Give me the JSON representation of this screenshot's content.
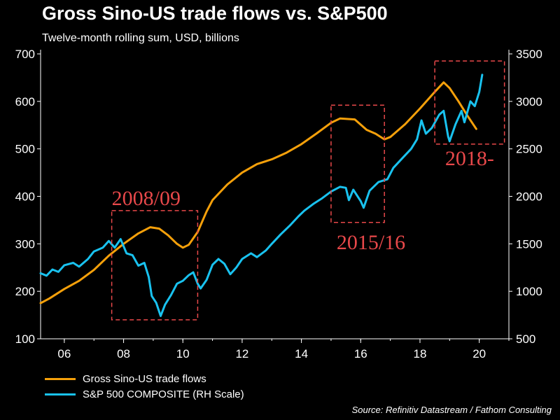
{
  "title": "Gross Sino-US trade flows vs. S&P500",
  "subtitle": "Twelve-month rolling sum, USD, billions",
  "source": "Source: Refinitiv Datastream / Fathom Consulting",
  "colors": {
    "trade": "#f5a00a",
    "sp500": "#19c2ef",
    "annotation": "#e8484a",
    "background": "#000000"
  },
  "chart_data": {
    "type": "line",
    "title": "Gross Sino-US trade flows vs. S&P500",
    "subtitle": "Twelve-month rolling sum, USD, billions",
    "x_ticks": [
      "06",
      "08",
      "10",
      "12",
      "14",
      "16",
      "18",
      "20"
    ],
    "xlim": [
      2005.2,
      2021.0
    ],
    "ylim_left": [
      100,
      700
    ],
    "ylim_right": [
      500,
      3500
    ],
    "y_ticks_left": [
      "100",
      "200",
      "300",
      "400",
      "500",
      "600",
      "700"
    ],
    "y_ticks_right": [
      "500",
      "1000",
      "1500",
      "2000",
      "2500",
      "3000",
      "3500"
    ],
    "series": [
      {
        "name": "Gross Sino-US trade flows",
        "axis": "left",
        "points": [
          [
            2005.2,
            175
          ],
          [
            2005.5,
            185
          ],
          [
            2006.0,
            205
          ],
          [
            2006.5,
            222
          ],
          [
            2007.0,
            245
          ],
          [
            2007.5,
            275
          ],
          [
            2008.0,
            300
          ],
          [
            2008.5,
            322
          ],
          [
            2008.9,
            335
          ],
          [
            2009.2,
            332
          ],
          [
            2009.5,
            318
          ],
          [
            2009.8,
            300
          ],
          [
            2010.0,
            292
          ],
          [
            2010.2,
            298
          ],
          [
            2010.5,
            325
          ],
          [
            2010.8,
            368
          ],
          [
            2011.0,
            392
          ],
          [
            2011.5,
            425
          ],
          [
            2012.0,
            450
          ],
          [
            2012.5,
            468
          ],
          [
            2013.0,
            478
          ],
          [
            2013.5,
            492
          ],
          [
            2014.0,
            510
          ],
          [
            2014.5,
            532
          ],
          [
            2015.0,
            555
          ],
          [
            2015.3,
            564
          ],
          [
            2015.8,
            562
          ],
          [
            2016.2,
            540
          ],
          [
            2016.5,
            532
          ],
          [
            2016.8,
            520
          ],
          [
            2017.0,
            525
          ],
          [
            2017.5,
            552
          ],
          [
            2018.0,
            585
          ],
          [
            2018.5,
            620
          ],
          [
            2018.8,
            640
          ],
          [
            2019.0,
            628
          ],
          [
            2019.3,
            600
          ],
          [
            2019.6,
            570
          ],
          [
            2019.9,
            542
          ]
        ]
      },
      {
        "name": "S&P 500 COMPOSITE (RH Scale)",
        "axis": "right",
        "points": [
          [
            2005.2,
            1190
          ],
          [
            2005.4,
            1165
          ],
          [
            2005.6,
            1230
          ],
          [
            2005.8,
            1205
          ],
          [
            2006.0,
            1275
          ],
          [
            2006.3,
            1300
          ],
          [
            2006.5,
            1260
          ],
          [
            2006.8,
            1340
          ],
          [
            2007.0,
            1420
          ],
          [
            2007.3,
            1460
          ],
          [
            2007.5,
            1530
          ],
          [
            2007.7,
            1460
          ],
          [
            2007.9,
            1550
          ],
          [
            2008.1,
            1400
          ],
          [
            2008.3,
            1380
          ],
          [
            2008.5,
            1270
          ],
          [
            2008.7,
            1300
          ],
          [
            2008.85,
            1150
          ],
          [
            2008.95,
            950
          ],
          [
            2009.1,
            880
          ],
          [
            2009.25,
            740
          ],
          [
            2009.4,
            860
          ],
          [
            2009.6,
            960
          ],
          [
            2009.8,
            1080
          ],
          [
            2010.0,
            1110
          ],
          [
            2010.2,
            1170
          ],
          [
            2010.35,
            1200
          ],
          [
            2010.5,
            1080
          ],
          [
            2010.6,
            1030
          ],
          [
            2010.8,
            1120
          ],
          [
            2011.0,
            1280
          ],
          [
            2011.2,
            1340
          ],
          [
            2011.4,
            1290
          ],
          [
            2011.6,
            1180
          ],
          [
            2011.8,
            1250
          ],
          [
            2012.0,
            1340
          ],
          [
            2012.3,
            1400
          ],
          [
            2012.5,
            1360
          ],
          [
            2012.8,
            1430
          ],
          [
            2013.0,
            1500
          ],
          [
            2013.3,
            1600
          ],
          [
            2013.6,
            1690
          ],
          [
            2013.9,
            1790
          ],
          [
            2014.1,
            1850
          ],
          [
            2014.4,
            1920
          ],
          [
            2014.7,
            1980
          ],
          [
            2015.0,
            2050
          ],
          [
            2015.3,
            2100
          ],
          [
            2015.5,
            2090
          ],
          [
            2015.6,
            1960
          ],
          [
            2015.75,
            2070
          ],
          [
            2016.0,
            1950
          ],
          [
            2016.1,
            1880
          ],
          [
            2016.3,
            2060
          ],
          [
            2016.6,
            2150
          ],
          [
            2016.9,
            2180
          ],
          [
            2017.1,
            2300
          ],
          [
            2017.4,
            2400
          ],
          [
            2017.7,
            2500
          ],
          [
            2017.9,
            2600
          ],
          [
            2018.05,
            2800
          ],
          [
            2018.2,
            2660
          ],
          [
            2018.4,
            2720
          ],
          [
            2018.65,
            2860
          ],
          [
            2018.8,
            2900
          ],
          [
            2018.95,
            2630
          ],
          [
            2019.0,
            2580
          ],
          [
            2019.2,
            2760
          ],
          [
            2019.4,
            2900
          ],
          [
            2019.5,
            2780
          ],
          [
            2019.7,
            3000
          ],
          [
            2019.85,
            2950
          ],
          [
            2020.0,
            3100
          ],
          [
            2020.1,
            3280
          ]
        ]
      }
    ],
    "annotations": [
      {
        "label": "2008/09",
        "x_range": [
          2007.6,
          2010.5
        ],
        "y_range": [
          140,
          370
        ]
      },
      {
        "label": "2015/16",
        "x_range": [
          2015.0,
          2016.8
        ],
        "y_range": [
          345,
          592
        ]
      },
      {
        "label": "2018-",
        "x_range": [
          2018.5,
          2020.85
        ],
        "y_range": [
          510,
          685
        ]
      }
    ],
    "grid": false,
    "legend": "bottom-left"
  }
}
